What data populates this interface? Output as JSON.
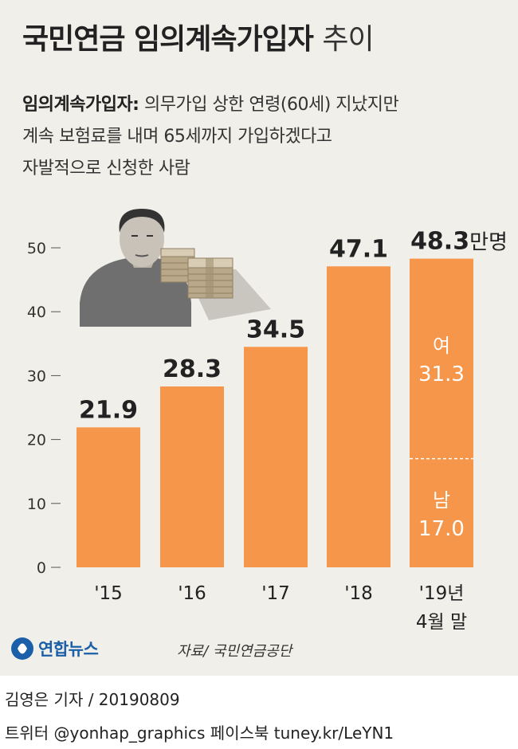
{
  "header": {
    "title": "국민연금 임의계속가입자",
    "title_suffix": "추이"
  },
  "description": {
    "term": "임의계속가입자:",
    "lines": [
      "의무가입 상한 연령(60세) 지났지만",
      "계속 보험료를 내며 65세까지 가입하겠다고",
      "자발적으로 신청한 사람"
    ]
  },
  "chart_data": {
    "type": "bar",
    "categories": [
      "'15",
      "'16",
      "'17",
      "'18",
      "'19년\n4월 말"
    ],
    "values": [
      21.9,
      28.3,
      34.5,
      47.1,
      48.3
    ],
    "value_labels": [
      "21.9",
      "28.3",
      "34.5",
      "47.1",
      "48.3"
    ],
    "unit_label": "만명",
    "ylim": [
      0,
      50
    ],
    "yticks": [
      0,
      10,
      20,
      30,
      40,
      50
    ],
    "grid": false,
    "bar_color": "#f5964a",
    "stacked_last": {
      "female": {
        "label": "여",
        "value": 31.3,
        "value_label": "31.3"
      },
      "male": {
        "label": "남",
        "value": 17.0,
        "value_label": "17.0"
      }
    }
  },
  "footer": {
    "logo_name": "연합뉴스",
    "source": "자료/ 국민연금공단",
    "byline": "김영은 기자 / 20190809",
    "social": "트위터 @yonhap_graphics  페이스북 tuney.kr/LeYN1"
  },
  "colors": {
    "panel": "#f1efe9",
    "bar": "#f5964a",
    "logo": "#1a5fa8"
  }
}
